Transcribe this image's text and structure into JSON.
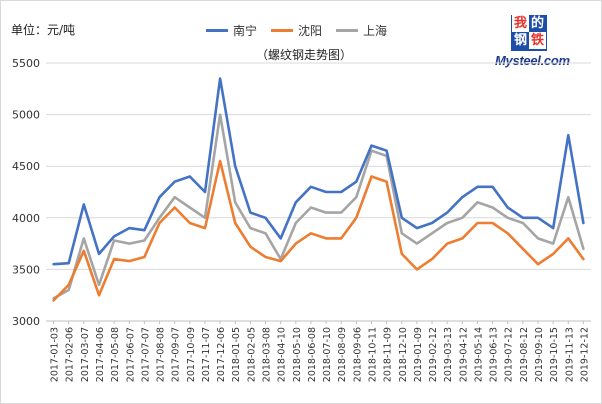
{
  "chart_data": {
    "type": "line",
    "unit_label": "单位：元/吨",
    "subtitle": "（螺纹钢走势图）",
    "ylim": [
      3000,
      5500
    ],
    "y_ticks": [
      3000,
      3500,
      4000,
      4500,
      5000,
      5500
    ],
    "x_tick_labels": [
      "2017-01-03",
      "2017-02-06",
      "2017-03-07",
      "2017-04-06",
      "2017-05-08",
      "2017-06-07",
      "2017-07-07",
      "2017-08-08",
      "2017-09-07",
      "2017-10-09",
      "2017-11-07",
      "2017-12-06",
      "2018-01-05",
      "2018-02-05",
      "2018-03-08",
      "2018-04-10",
      "2018-05-10",
      "2018-06-08",
      "2018-07-10",
      "2018-08-09",
      "2018-09-06",
      "2018-10-11",
      "2018-11-09",
      "2018-12-10",
      "2019-01-09",
      "2019-02-12",
      "2019-03-13",
      "2019-04-12",
      "2019-05-14",
      "2019-06-13",
      "2019-07-12",
      "2019-08-12",
      "2019-09-10",
      "2019-10-15",
      "2019-11-13",
      "2019-12-12"
    ],
    "grid": "horizontal",
    "legend_position": "top",
    "x_positions": [
      0,
      1,
      2,
      3,
      4,
      5,
      6,
      7,
      8,
      9,
      10,
      11,
      12,
      13,
      14,
      15,
      16,
      17,
      18,
      19,
      20,
      21,
      22,
      23,
      24,
      25,
      26,
      27,
      28,
      29,
      30,
      31,
      32,
      33,
      34,
      35
    ],
    "series": [
      {
        "name": "南宁",
        "color": "#4472c4",
        "values": [
          3550,
          3560,
          4130,
          3650,
          3820,
          3900,
          3880,
          4200,
          4350,
          4400,
          4250,
          5350,
          4500,
          4050,
          4000,
          3800,
          4150,
          4300,
          4250,
          4250,
          4350,
          4700,
          4650,
          4000,
          3900,
          3950,
          4050,
          4200,
          4300,
          4300,
          4100,
          4000,
          4000,
          3900,
          4800,
          3950
        ]
      },
      {
        "name": "沈阳",
        "color": "#ed7d31",
        "values": [
          3200,
          3350,
          3680,
          3250,
          3600,
          3580,
          3620,
          3950,
          4100,
          3950,
          3900,
          4550,
          3950,
          3720,
          3620,
          3580,
          3750,
          3850,
          3800,
          3800,
          4000,
          4400,
          4350,
          3650,
          3500,
          3600,
          3750,
          3800,
          3950,
          3950,
          3850,
          3700,
          3550,
          3650,
          3800,
          3600
        ]
      },
      {
        "name": "上海",
        "color": "#a5a5a5",
        "values": [
          3220,
          3300,
          3800,
          3350,
          3780,
          3750,
          3780,
          4000,
          4200,
          4100,
          4000,
          5000,
          4150,
          3900,
          3850,
          3600,
          3950,
          4100,
          4050,
          4050,
          4200,
          4650,
          4600,
          3850,
          3750,
          3850,
          3950,
          4000,
          4150,
          4100,
          4000,
          3950,
          3800,
          3750,
          4200,
          3700
        ]
      }
    ]
  },
  "logo": {
    "cells": [
      "我",
      "的",
      "钢",
      "铁"
    ],
    "text": "Mysteel.com"
  }
}
